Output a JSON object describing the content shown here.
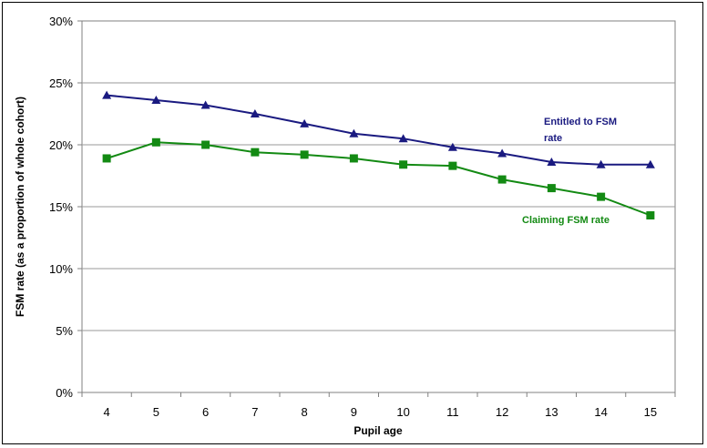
{
  "chart_data": {
    "type": "line",
    "title": "",
    "xlabel": "Pupil age",
    "ylabel": "FSM rate (as a proportion of whole cohort)",
    "x": [
      4,
      5,
      6,
      7,
      8,
      9,
      10,
      11,
      12,
      13,
      14,
      15
    ],
    "ylim": [
      0,
      30
    ],
    "yticks": [
      "0%",
      "5%",
      "10%",
      "15%",
      "20%",
      "25%",
      "30%"
    ],
    "grid": true,
    "series": [
      {
        "name": "Entitled to FSM rate",
        "label_lines": [
          "Entitled to FSM",
          "rate"
        ],
        "color": "#1a1a80",
        "marker": "triangle",
        "values": [
          24.0,
          23.6,
          23.2,
          22.5,
          21.7,
          20.9,
          20.5,
          19.8,
          19.3,
          18.6,
          18.4,
          18.4
        ]
      },
      {
        "name": "Claiming FSM rate",
        "label_lines": [
          "Claiming FSM rate"
        ],
        "color": "#138a13",
        "marker": "square",
        "values": [
          18.9,
          20.2,
          20.0,
          19.4,
          19.2,
          18.9,
          18.4,
          18.3,
          17.2,
          16.5,
          15.8,
          14.3
        ]
      }
    ]
  }
}
